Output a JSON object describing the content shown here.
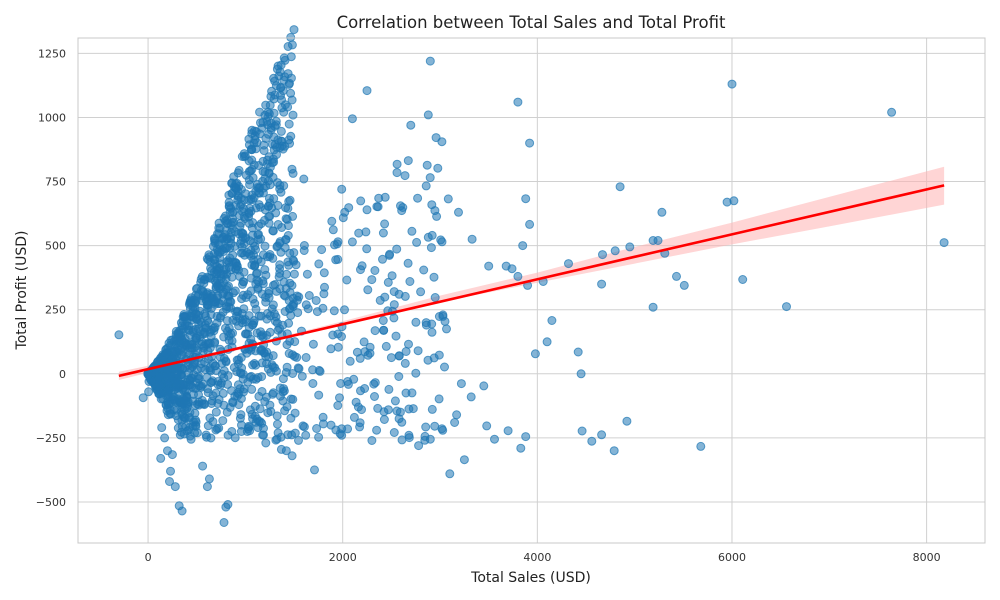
{
  "chart_data": {
    "type": "scatter",
    "title": "Correlation between Total Sales and Total Profit",
    "xlabel": "Total Sales (USD)",
    "ylabel": "Total Profit (USD)",
    "xlim": [
      -720,
      8600
    ],
    "ylim": [
      -660,
      1310
    ],
    "xticks": [
      0,
      2000,
      4000,
      6000,
      8000
    ],
    "yticks": [
      -500,
      -250,
      0,
      250,
      500,
      750,
      1000,
      1250
    ],
    "grid": true,
    "point_color": "#1f77b4",
    "regression_color": "#ff0000",
    "band_color": "#ffb3b3",
    "regression_line": {
      "x": [
        -300,
        8180
      ],
      "y": [
        -8,
        735
      ]
    },
    "confidence_band": {
      "x": [
        -300,
        1000,
        2000,
        3000,
        4000,
        5000,
        6000,
        7000,
        8180
      ],
      "upper": [
        8,
        110,
        205,
        305,
        395,
        495,
        590,
        690,
        808
      ],
      "lower": [
        -24,
        100,
        190,
        280,
        355,
        430,
        505,
        575,
        660
      ]
    },
    "points": [
      [
        -300,
        152
      ],
      [
        -50,
        -93
      ],
      [
        5,
        -70
      ],
      [
        10,
        -30
      ],
      [
        2900,
        1220
      ],
      [
        2250,
        1105
      ],
      [
        2100,
        995
      ],
      [
        2700,
        970
      ],
      [
        2880,
        1010
      ],
      [
        3800,
        1060
      ],
      [
        3920,
        900
      ],
      [
        6000,
        1130
      ],
      [
        7640,
        1020
      ],
      [
        8180,
        512
      ],
      [
        4850,
        730
      ],
      [
        5280,
        630
      ],
      [
        5950,
        670
      ],
      [
        6020,
        675
      ],
      [
        6110,
        368
      ],
      [
        6560,
        262
      ],
      [
        5680,
        -283
      ],
      [
        4920,
        -185
      ],
      [
        4790,
        -300
      ],
      [
        4660,
        -238
      ],
      [
        4560,
        -263
      ],
      [
        4460,
        -223
      ],
      [
        4420,
        85
      ],
      [
        4450,
        0
      ],
      [
        4150,
        208
      ],
      [
        4100,
        125
      ],
      [
        3980,
        78
      ],
      [
        3880,
        683
      ],
      [
        3920,
        583
      ],
      [
        3850,
        500
      ],
      [
        3830,
        -290
      ],
      [
        3880,
        -245
      ],
      [
        3700,
        -222
      ],
      [
        3560,
        -255
      ],
      [
        3480,
        -203
      ],
      [
        3450,
        -47
      ],
      [
        3320,
        -90
      ],
      [
        3250,
        -335
      ],
      [
        3220,
        -38
      ],
      [
        3170,
        -160
      ],
      [
        3100,
        -390
      ],
      [
        3150,
        -190
      ],
      [
        2900,
        -255
      ],
      [
        2780,
        -280
      ],
      [
        2680,
        -240
      ],
      [
        2650,
        -75
      ],
      [
        2580,
        -175
      ],
      [
        2470,
        -140
      ],
      [
        2360,
        -135
      ],
      [
        2300,
        -260
      ],
      [
        2120,
        -170
      ],
      [
        2050,
        -215
      ],
      [
        1990,
        -240
      ],
      [
        1880,
        -200
      ],
      [
        1710,
        -375
      ],
      [
        1620,
        -240
      ],
      [
        1480,
        -320
      ],
      [
        1420,
        -300
      ],
      [
        1370,
        -295
      ],
      [
        1210,
        -270
      ],
      [
        1130,
        -210
      ],
      [
        1020,
        -225
      ],
      [
        960,
        -200
      ],
      [
        860,
        -225
      ],
      [
        820,
        -510
      ],
      [
        800,
        -520
      ],
      [
        780,
        -580
      ],
      [
        630,
        -410
      ],
      [
        610,
        -440
      ],
      [
        560,
        -360
      ],
      [
        320,
        -515
      ],
      [
        350,
        -535
      ],
      [
        230,
        -380
      ],
      [
        220,
        -420
      ],
      [
        280,
        -440
      ],
      [
        250,
        -315
      ],
      [
        200,
        -300
      ],
      [
        130,
        -330
      ],
      [
        170,
        -250
      ],
      [
        140,
        -210
      ],
      [
        1600,
        760
      ],
      [
        1990,
        720
      ],
      [
        2020,
        630
      ],
      [
        2250,
        640
      ],
      [
        2370,
        685
      ],
      [
        2430,
        585
      ],
      [
        2770,
        685
      ],
      [
        2480,
        462
      ],
      [
        2920,
        540
      ],
      [
        3190,
        630
      ],
      [
        3330,
        525
      ],
      [
        3020,
        515
      ],
      [
        3500,
        420
      ],
      [
        3680,
        420
      ],
      [
        3740,
        410
      ],
      [
        3800,
        380
      ],
      [
        3900,
        345
      ],
      [
        4060,
        360
      ],
      [
        4320,
        430
      ],
      [
        4670,
        465
      ],
      [
        4800,
        480
      ],
      [
        4950,
        495
      ],
      [
        5190,
        520
      ],
      [
        5240,
        520
      ],
      [
        5310,
        470
      ],
      [
        5430,
        380
      ],
      [
        5510,
        345
      ],
      [
        5190,
        260
      ],
      [
        4660,
        350
      ],
      [
        3030,
        230
      ],
      [
        2940,
        62
      ],
      [
        2860,
        190
      ],
      [
        2800,
        320
      ],
      [
        2580,
        310
      ],
      [
        2530,
        270
      ],
      [
        2420,
        170
      ],
      [
        2280,
        80
      ],
      [
        2320,
        -40
      ],
      [
        2180,
        60
      ],
      [
        2050,
        -30
      ]
    ]
  }
}
